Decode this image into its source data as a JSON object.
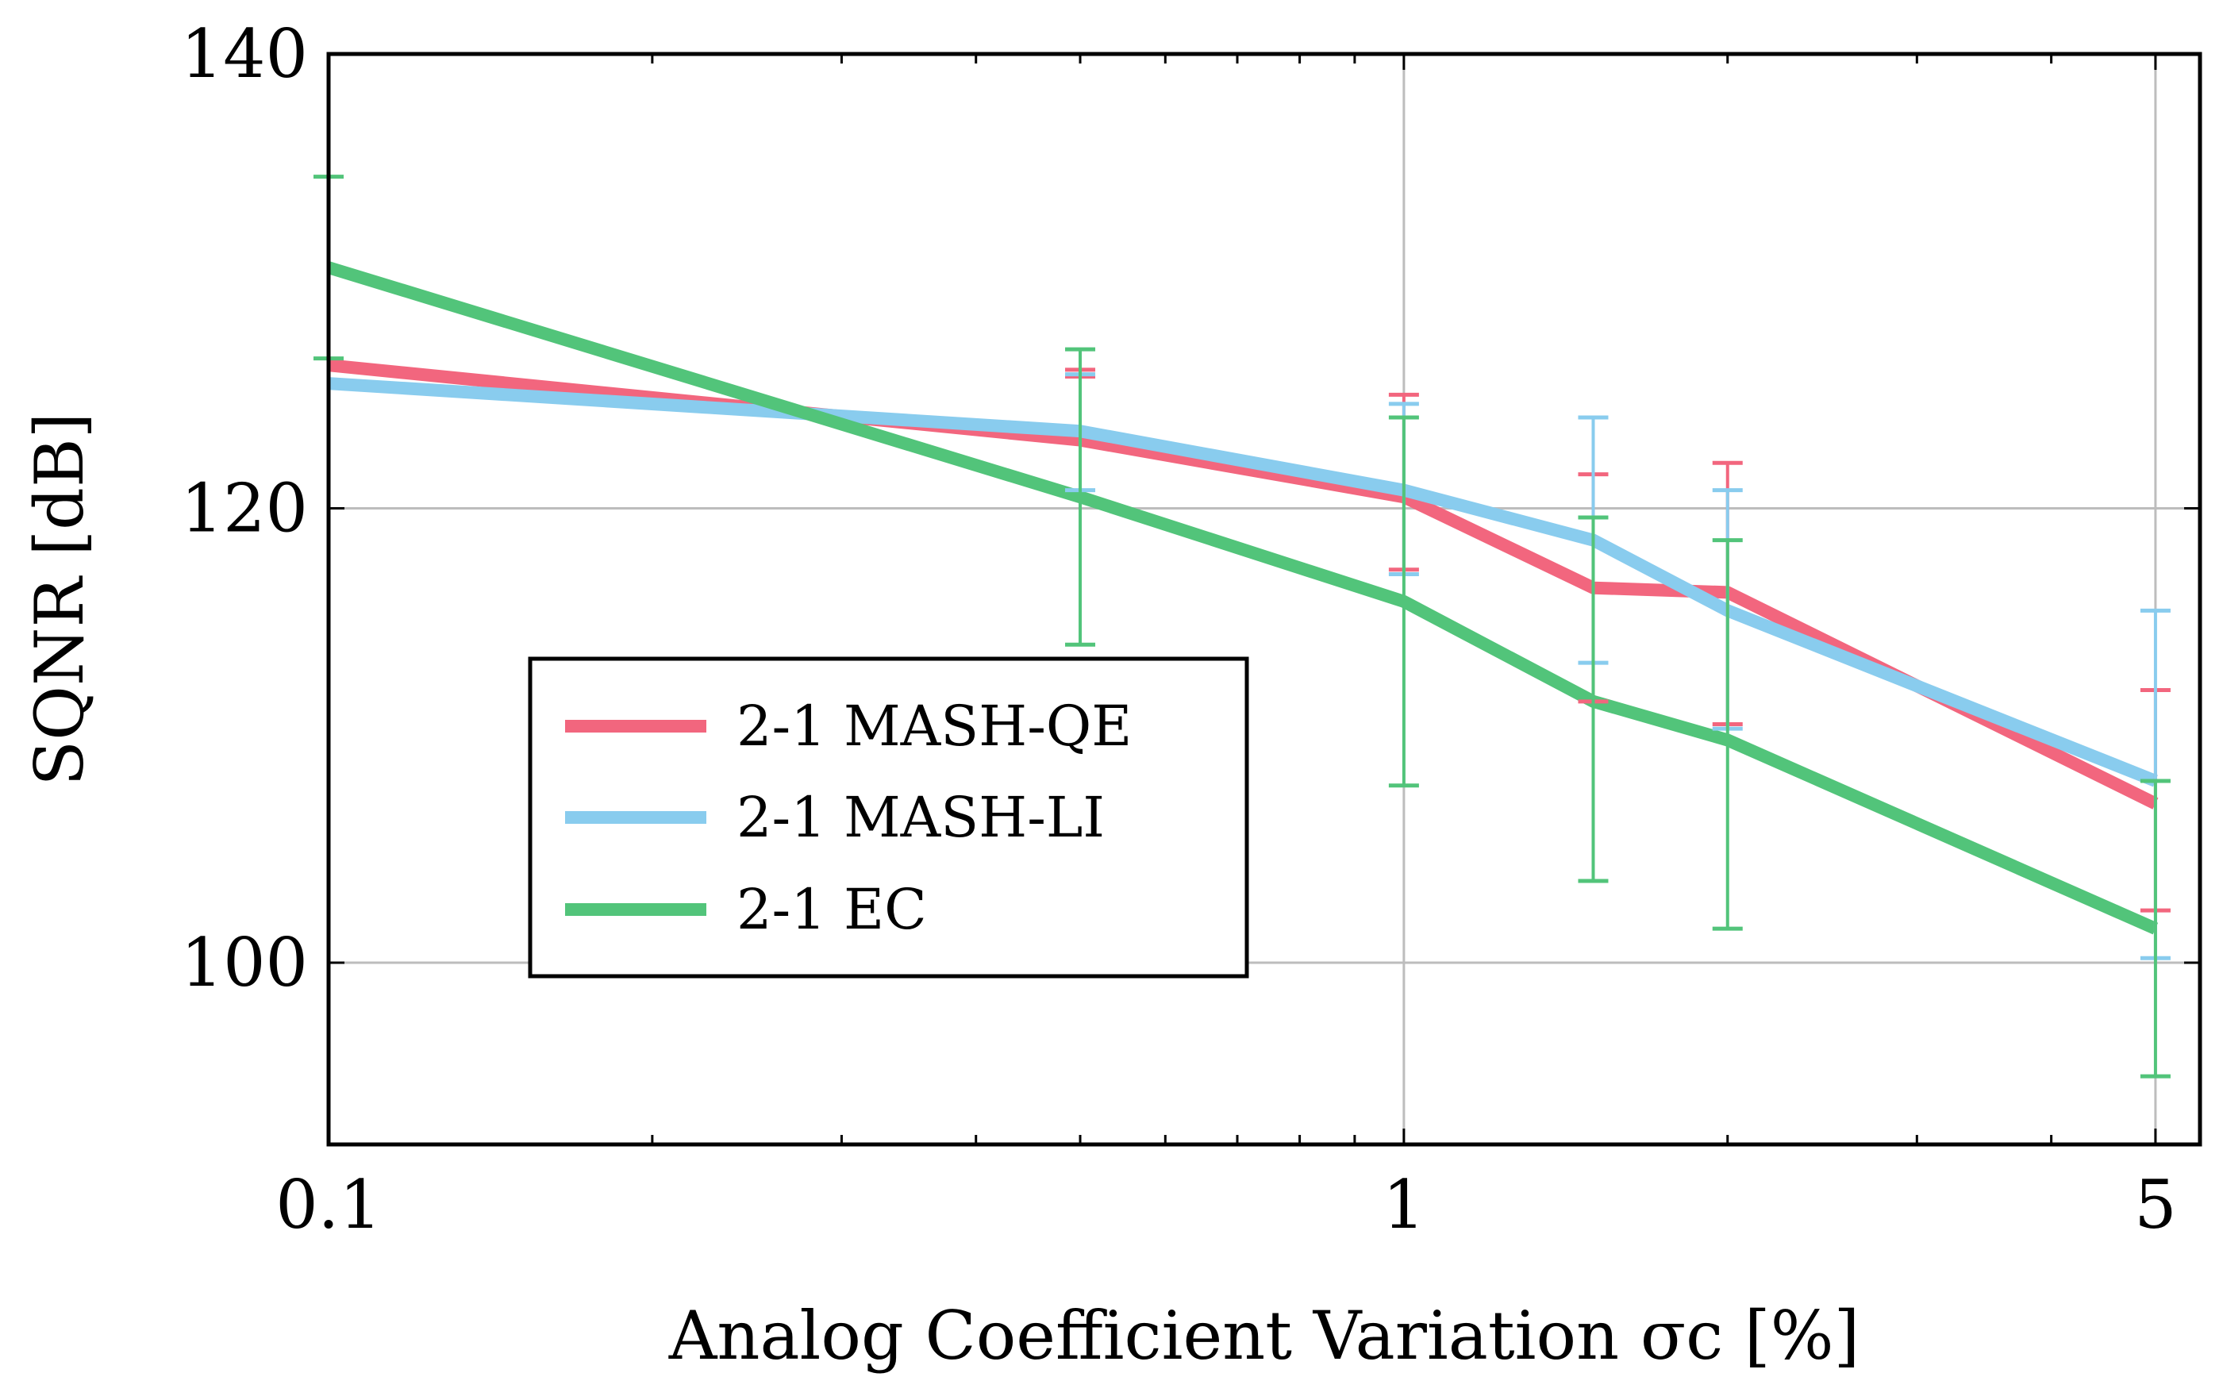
{
  "chart_data": {
    "type": "line",
    "xlabel": "Analog Coefficient Variation σc [%]",
    "ylabel": "SQNR [dB]",
    "xscale": "log",
    "xlim": [
      0.1,
      5.5
    ],
    "ylim": [
      92,
      140
    ],
    "x_ticks": [
      {
        "value": 0.1,
        "label": "0.1"
      },
      {
        "value": 1,
        "label": "1"
      },
      {
        "value": 5,
        "label": "5"
      }
    ],
    "y_ticks": [
      {
        "value": 100,
        "label": "100"
      },
      {
        "value": 120,
        "label": "120"
      },
      {
        "value": 140,
        "label": "140"
      }
    ],
    "grid": true,
    "legend_position": "lower-left",
    "series": [
      {
        "name": "2-1 MASH-QE",
        "color": "#f2667e",
        "x": [
          0.1,
          0.5,
          1,
          1.5,
          2,
          5
        ],
        "y": [
          126.3,
          123,
          120.5,
          116.5,
          116.3,
          107
        ],
        "err_low": [
          null,
          125.8,
          117.3,
          111.5,
          110.5,
          102.3
        ],
        "err_high": [
          null,
          126.1,
          125,
          121.5,
          122,
          112
        ]
      },
      {
        "name": "2-1 MASH-LI",
        "color": "#89ccee",
        "x": [
          0.1,
          0.5,
          1,
          1.5,
          2,
          5
        ],
        "y": [
          125.5,
          123.4,
          120.8,
          118.6,
          115.5,
          108
        ],
        "err_low": [
          null,
          120.8,
          117.1,
          113.2,
          110.3,
          100.2
        ],
        "err_high": [
          null,
          125.9,
          124.6,
          124.0,
          120.8,
          115.5
        ]
      },
      {
        "name": "2-1 EC",
        "color": "#52c47a",
        "x": [
          0.1,
          0.5,
          1,
          1.5,
          2,
          5
        ],
        "y": [
          130.6,
          120.5,
          115.9,
          111.5,
          109.8,
          101.5
        ],
        "err_low": [
          126.6,
          114.0,
          107.8,
          103.6,
          101.5,
          95.0
        ],
        "err_high": [
          134.6,
          127.0,
          124.0,
          119.6,
          118.6,
          108.0
        ]
      }
    ]
  }
}
